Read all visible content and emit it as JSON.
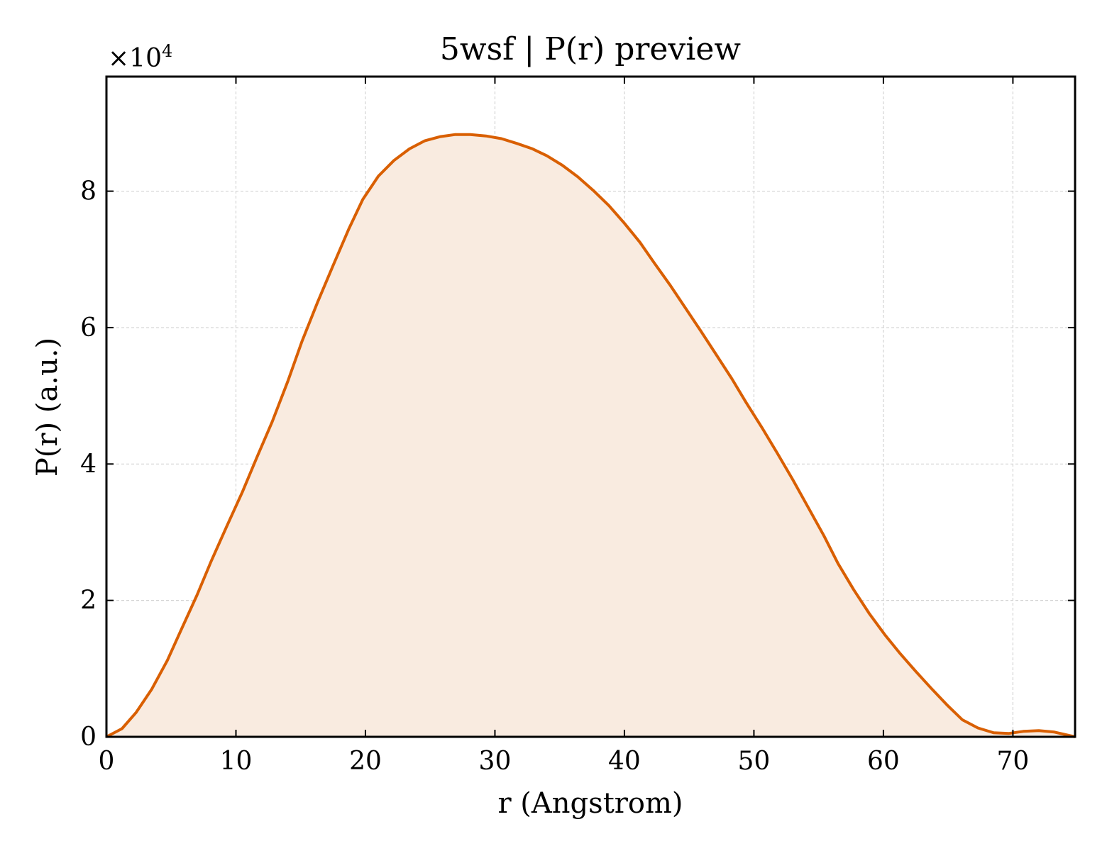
{
  "chart_data": {
    "type": "area",
    "title": "5wsf | P(r) preview",
    "xlabel": "r (Angstrom)",
    "ylabel": "P(r) (a.u.)",
    "y_offset_label": "×10",
    "y_offset_exponent": "4",
    "xlim": [
      0,
      74.8
    ],
    "ylim": [
      0,
      96800
    ],
    "xticks": [
      0,
      10,
      20,
      30,
      40,
      50,
      60,
      70
    ],
    "yticks": [
      0,
      20000,
      40000,
      60000,
      80000
    ],
    "ytick_labels": [
      "0",
      "2",
      "4",
      "6",
      "8"
    ],
    "grid": true,
    "line_color": "#d95f02",
    "fill_color": "#f9ebe0",
    "series": [
      {
        "x": [
          0,
          1.2,
          2.3,
          3.5,
          4.7,
          5.8,
          7.0,
          8.1,
          9.3,
          10.5,
          11.6,
          12.8,
          14.0,
          15.1,
          16.3,
          17.5,
          18.7,
          19.8,
          21.0,
          22.2,
          23.4,
          24.6,
          25.8,
          26.9,
          28.1,
          29.3,
          30.5,
          31.7,
          32.9,
          34.0,
          35.2,
          36.4,
          37.6,
          38.8,
          40.0,
          41.2,
          42.3,
          43.5,
          44.7,
          45.9,
          47.1,
          48.3,
          49.4,
          50.6,
          51.8,
          53.0,
          54.2,
          55.4,
          56.5,
          57.7,
          58.9,
          60.1,
          61.3,
          62.5,
          63.7,
          64.9,
          66.1,
          67.3,
          68.5,
          69.7,
          70.8,
          72.0,
          73.2,
          74.8
        ],
        "y": [
          0,
          1200,
          3600,
          7000,
          11200,
          15800,
          20800,
          25800,
          30900,
          35900,
          40900,
          46200,
          52100,
          58000,
          63700,
          69100,
          74400,
          78800,
          82200,
          84500,
          86200,
          87400,
          88000,
          88300,
          88300,
          88100,
          87700,
          87000,
          86200,
          85200,
          83800,
          82100,
          80100,
          77900,
          75300,
          72500,
          69500,
          66300,
          62900,
          59500,
          56000,
          52500,
          49000,
          45400,
          41600,
          37700,
          33600,
          29500,
          25400,
          21600,
          18100,
          15000,
          12200,
          9600,
          7100,
          4700,
          2500,
          1300,
          600,
          500,
          800,
          900,
          700,
          0
        ]
      }
    ]
  }
}
